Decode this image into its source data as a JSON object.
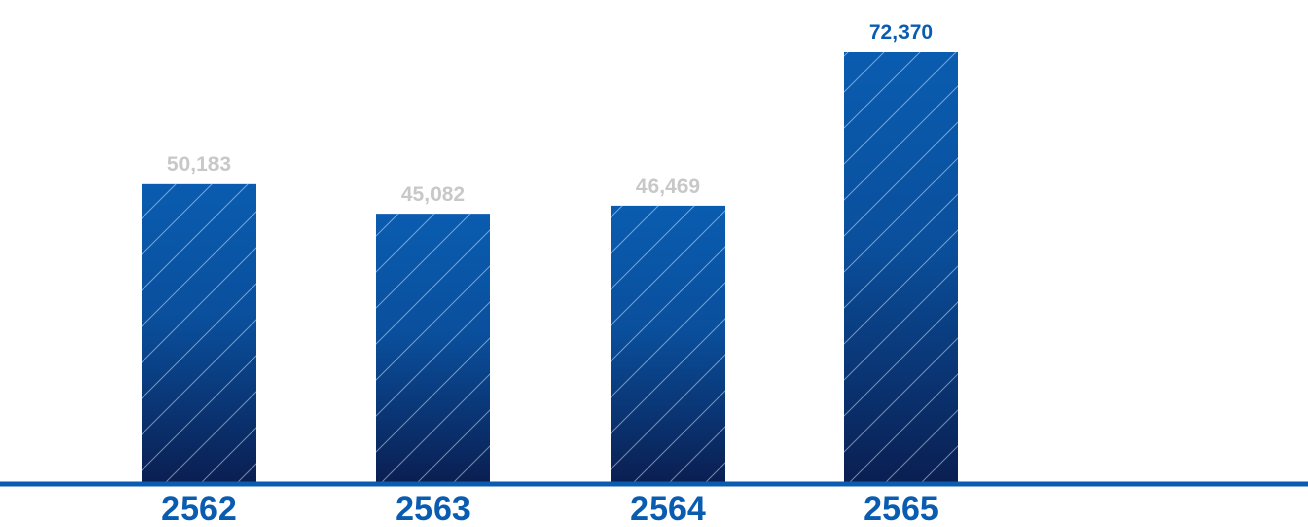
{
  "chart_data": {
    "type": "bar",
    "categories": [
      "2562",
      "2563",
      "2564",
      "2565"
    ],
    "values": [
      50183,
      45082,
      46469,
      72370
    ],
    "value_labels": [
      "50,183",
      "45,082",
      "46,469",
      "72,370"
    ],
    "title": "",
    "xlabel": "",
    "ylabel": "",
    "ylim": [
      0,
      72370
    ],
    "grid": false,
    "legend": "none"
  },
  "colors": {
    "bar_top": "#0a5cb0",
    "bar_bottom": "#0a1f52",
    "hatch": "#ffffff",
    "baseline": "#0a5cb0",
    "category_label": "#0a5cb0",
    "value_label_default": "#c8c8c8",
    "value_label_highlight": "#0a5cb0"
  },
  "highlight_index": 3
}
